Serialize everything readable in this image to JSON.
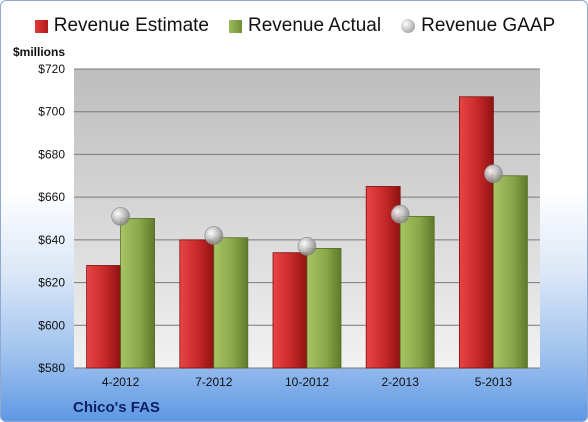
{
  "legend": {
    "estimate_label": "Revenue Estimate",
    "actual_label": "Revenue Actual",
    "gaap_label": "Revenue GAAP"
  },
  "unit_label": "$millions",
  "company": "Chico's FAS",
  "colors": {
    "estimate": "#c62828",
    "actual": "#8aa84a",
    "gaap": "#b0b0b0"
  },
  "chart_data": {
    "type": "bar",
    "categories": [
      "4-2012",
      "7-2012",
      "10-2012",
      "2-2013",
      "5-2013"
    ],
    "series": [
      {
        "name": "Revenue Estimate",
        "values": [
          628,
          640,
          634,
          665,
          707
        ]
      },
      {
        "name": "Revenue Actual",
        "values": [
          650,
          641,
          636,
          651,
          670
        ]
      },
      {
        "name": "Revenue GAAP",
        "values": [
          651,
          642,
          637,
          652,
          671
        ]
      }
    ],
    "ylabel": "$millions",
    "ylim": [
      580,
      720
    ],
    "yticks": [
      "$580",
      "$600",
      "$620",
      "$640",
      "$660",
      "$680",
      "$700",
      "$720"
    ],
    "grid": true,
    "legend_position": "top"
  }
}
